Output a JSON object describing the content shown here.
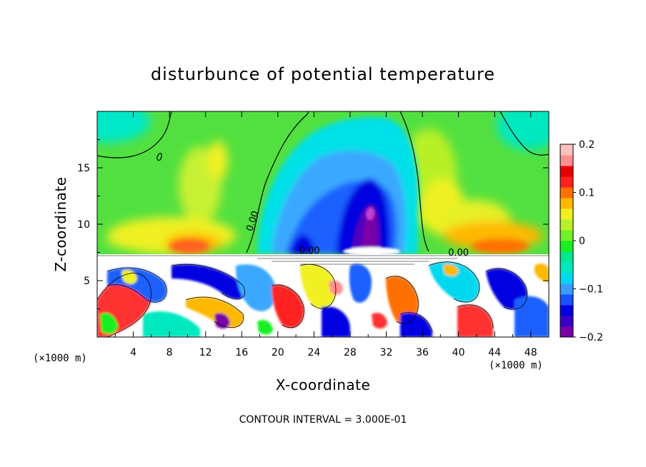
{
  "chart_data": {
    "type": "heatmap",
    "title": "disturbunce of potential temperature",
    "xlabel": "X-coordinate",
    "ylabel": "Z-coordinate",
    "x_unit": "(×1000 m)",
    "y_unit": "(×1000 m)",
    "xlim": [
      0,
      50
    ],
    "ylim": [
      0,
      20
    ],
    "x_ticks": [
      4,
      8,
      12,
      16,
      20,
      24,
      28,
      32,
      36,
      40,
      44,
      48
    ],
    "y_ticks": [
      5,
      10,
      15
    ],
    "colorbar": {
      "min": -0.2,
      "max": 0.2,
      "ticks": [
        -0.2,
        -0.1,
        0,
        0.1,
        0.2
      ],
      "tick_labels": [
        "−0.2",
        "−0.1",
        "0",
        "0.1",
        "0.2"
      ],
      "colors": [
        "#7a00a8",
        "#3a00c8",
        "#0000e0",
        "#1a50ff",
        "#3a9cff",
        "#00d8f0",
        "#00e8c0",
        "#00e890",
        "#18f020",
        "#70f028",
        "#b8f028",
        "#f0f020",
        "#ffb800",
        "#ff7000",
        "#ff2020",
        "#e80000",
        "#ff9090",
        "#ffc0c0"
      ]
    },
    "contour_interval_text": "CONTOUR INTERVAL = 3.000E-01",
    "contour_labels": [
      {
        "text": "0.00",
        "x": 17.5,
        "z": 10.2
      },
      {
        "text": "0.00",
        "x": 23.5,
        "z": 7.4
      },
      {
        "text": "0.00",
        "x": 40.0,
        "z": 7.2
      }
    ],
    "features": [
      {
        "name": "upper-negative-plume",
        "x_center": 30.0,
        "z_center": 11.5,
        "min_value": -0.2
      },
      {
        "name": "positive-band-above-layer",
        "z_center": 8.0,
        "value": 0.15
      }
    ]
  }
}
